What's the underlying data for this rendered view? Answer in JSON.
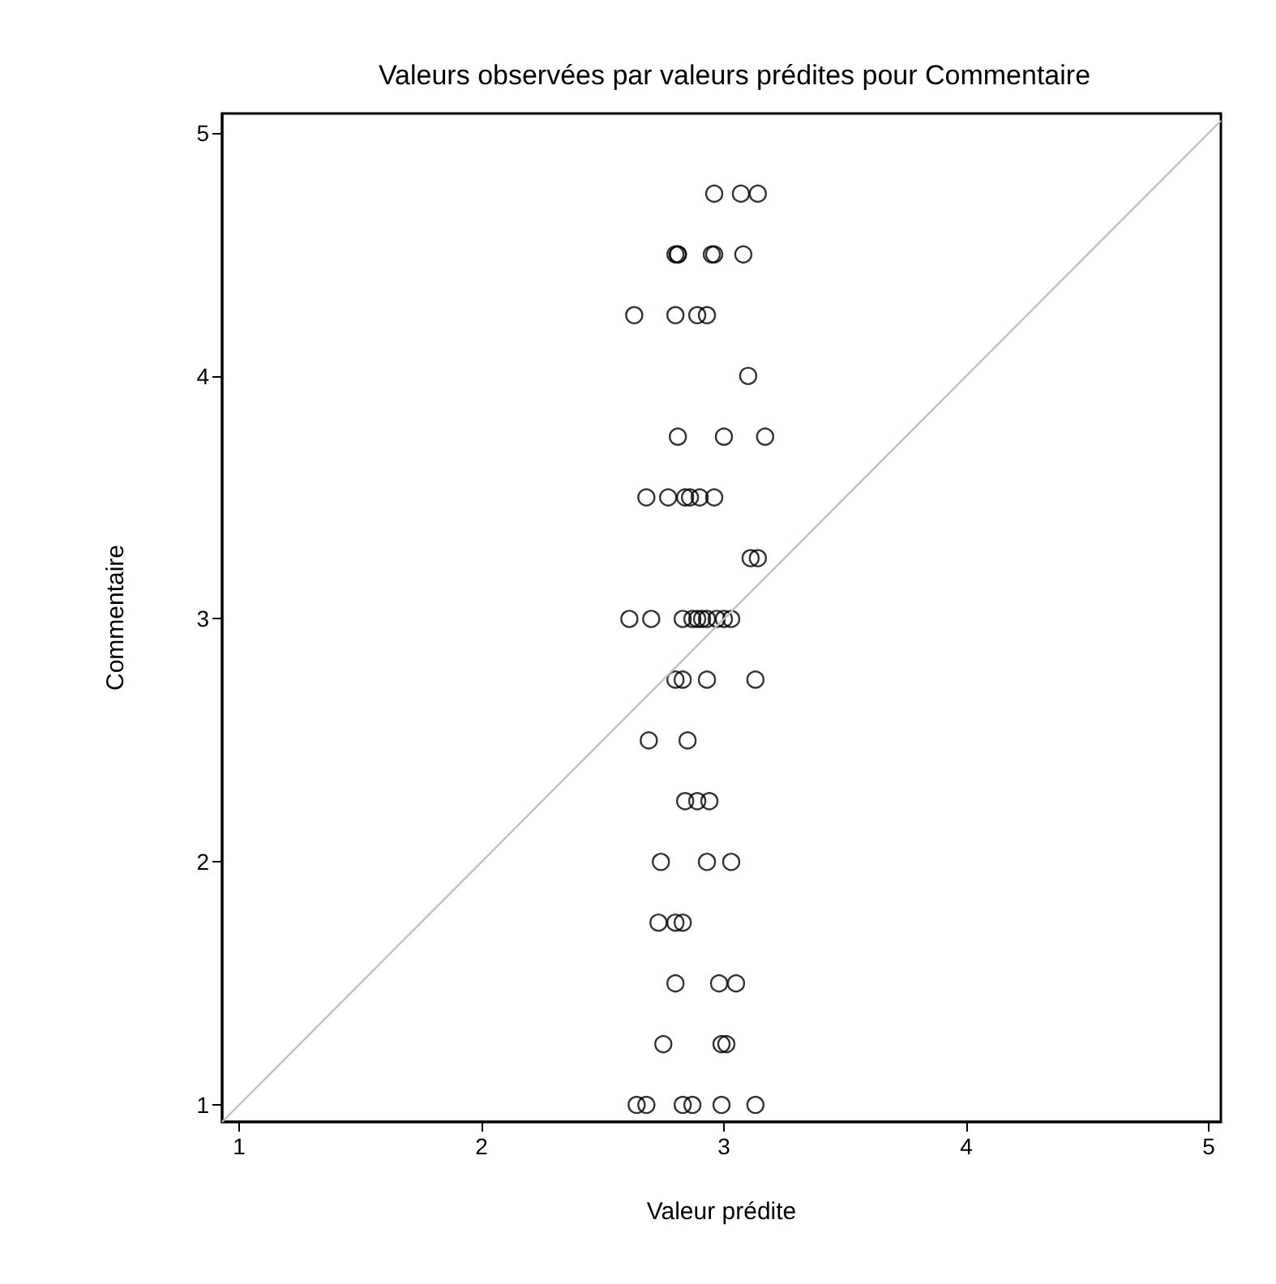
{
  "chart_data": {
    "type": "scatter",
    "title": "Valeurs observées par valeurs prédites pour Commentaire",
    "xlabel": "Valeur prédite",
    "ylabel": "Commentaire",
    "xlim": [
      0.93,
      5.05
    ],
    "ylim": [
      0.93,
      5.08
    ],
    "xticks": [
      1,
      2,
      3,
      4,
      5
    ],
    "yticks": [
      1,
      2,
      3,
      4,
      5
    ],
    "grid": false,
    "marker": "circle",
    "series": [
      {
        "color": "#000000",
        "x": [
          2.96,
          3.07,
          3.14,
          2.81,
          2.81,
          2.8,
          2.95,
          2.96,
          3.08,
          2.63,
          2.8,
          2.89,
          2.93,
          3.1,
          2.81,
          3.0,
          3.17,
          2.68,
          2.77,
          2.84,
          2.86,
          2.9,
          2.96,
          3.11,
          3.14,
          2.61,
          2.7,
          2.83,
          2.87,
          2.89,
          2.91,
          2.93,
          2.97,
          3.0,
          3.03,
          2.8,
          2.83,
          2.93,
          3.13,
          2.69,
          2.85,
          2.84,
          2.89,
          2.94,
          2.74,
          2.93,
          3.03,
          2.73,
          2.8,
          2.83,
          2.8,
          2.98,
          3.05,
          2.75,
          2.99,
          3.01,
          2.64,
          2.68,
          2.83,
          2.87,
          2.99,
          3.13
        ],
        "values": [
          4.75,
          4.75,
          4.75,
          4.5,
          4.5,
          4.5,
          4.5,
          4.5,
          4.5,
          4.25,
          4.25,
          4.25,
          4.25,
          4,
          3.75,
          3.75,
          3.75,
          3.5,
          3.5,
          3.5,
          3.5,
          3.5,
          3.5,
          3.25,
          3.25,
          3,
          3,
          3,
          3,
          3,
          3,
          3,
          3,
          3,
          3,
          2.75,
          2.75,
          2.75,
          2.75,
          2.5,
          2.5,
          2.25,
          2.25,
          2.25,
          2,
          2,
          2,
          1.75,
          1.75,
          1.75,
          1.5,
          1.5,
          1.5,
          1.25,
          1.25,
          1.25,
          1,
          1,
          1,
          1,
          1,
          1
        ]
      },
      {
        "type": "line",
        "color": "#c0c0c0",
        "marker": "none",
        "x": [
          0.93,
          5.05
        ],
        "values": [
          0.93,
          5.05
        ]
      }
    ]
  }
}
